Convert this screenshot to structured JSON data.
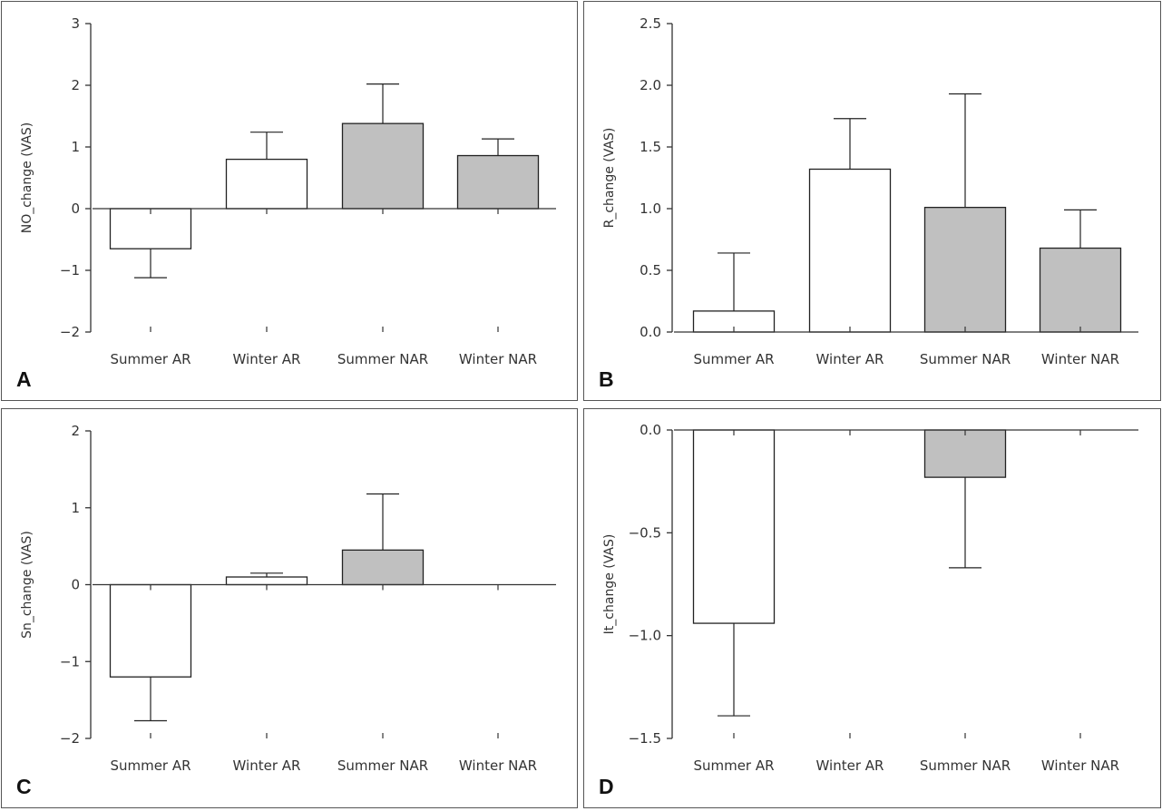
{
  "colors": {
    "axis": "#333333",
    "bar_stroke": "#222222",
    "white_fill": "#ffffff",
    "gray_fill": "#c0c0c0"
  },
  "chart_data": [
    {
      "panel_letter": "A",
      "type": "bar",
      "categories": [
        "Summer AR",
        "Winter AR",
        "Summer NAR",
        "Winter NAR"
      ],
      "values": [
        -0.65,
        0.8,
        1.38,
        0.86
      ],
      "error_upper": [
        -1.12,
        1.24,
        2.02,
        1.13
      ],
      "fills": [
        "white",
        "white",
        "gray",
        "gray"
      ],
      "ylabel": "NO_change (VAS)",
      "ylim": [
        -2,
        3
      ],
      "yticks": [
        3,
        2,
        1,
        0,
        -1,
        -2
      ],
      "ytick_labels": [
        "3",
        "2",
        "1",
        "0",
        "−1",
        "−2"
      ]
    },
    {
      "panel_letter": "B",
      "type": "bar",
      "categories": [
        "Summer AR",
        "Winter AR",
        "Summer NAR",
        "Winter NAR"
      ],
      "values": [
        0.17,
        1.32,
        1.01,
        0.68
      ],
      "error_upper": [
        0.64,
        1.73,
        1.93,
        0.99
      ],
      "fills": [
        "white",
        "white",
        "gray",
        "gray"
      ],
      "ylabel": "R_change (VAS)",
      "ylim": [
        0.0,
        2.5
      ],
      "yticks": [
        2.5,
        2.0,
        1.5,
        1.0,
        0.5,
        0.0
      ],
      "ytick_labels": [
        "2.5",
        "2.0",
        "1.5",
        "1.0",
        "0.5",
        "0.0"
      ]
    },
    {
      "panel_letter": "C",
      "type": "bar",
      "categories": [
        "Summer AR",
        "Winter AR",
        "Summer NAR",
        "Winter NAR"
      ],
      "values": [
        -1.2,
        0.1,
        0.45,
        0.0
      ],
      "error_upper": [
        -1.77,
        0.15,
        1.18,
        null
      ],
      "fills": [
        "white",
        "white",
        "gray",
        "gray"
      ],
      "ylabel": "Sn_change (VAS)",
      "ylim": [
        -2,
        2
      ],
      "yticks": [
        2,
        1,
        0,
        -1,
        -2
      ],
      "ytick_labels": [
        "2",
        "1",
        "0",
        "−1",
        "−2"
      ]
    },
    {
      "panel_letter": "D",
      "type": "bar",
      "categories": [
        "Summer AR",
        "Winter AR",
        "Summer NAR",
        "Winter NAR"
      ],
      "values": [
        -0.94,
        0.0,
        -0.23,
        0.0
      ],
      "error_upper": [
        -1.39,
        null,
        -0.67,
        null
      ],
      "fills": [
        "white",
        "white",
        "gray",
        "gray"
      ],
      "ylabel": "It_change (VAS)",
      "ylim": [
        -1.5,
        0.0
      ],
      "yticks": [
        0.0,
        -0.5,
        -1.0,
        -1.5
      ],
      "ytick_labels": [
        "0.0",
        "−0.5",
        "−1.0",
        "−1.5"
      ]
    }
  ]
}
